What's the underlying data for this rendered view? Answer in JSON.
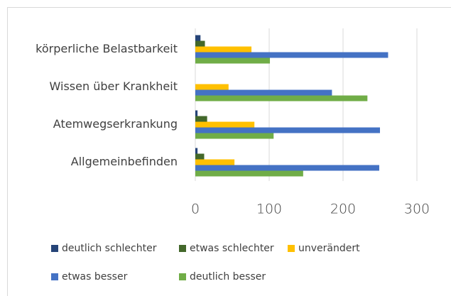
{
  "chart_data": {
    "type": "bar",
    "orientation": "horizontal",
    "categories": [
      "körperliche Belastbarkeit",
      "Wissen über Krankheit",
      "Atemwegserkrankung",
      "Allgemeinbefinden"
    ],
    "series": [
      {
        "name": "deutlich schlechter",
        "color": "#264478",
        "values": [
          7,
          0,
          3,
          3
        ]
      },
      {
        "name": "etwas schlechter",
        "color": "#43682b",
        "values": [
          13,
          0,
          16,
          12
        ]
      },
      {
        "name": "unverändert",
        "color": "#ffc000",
        "values": [
          76,
          45,
          80,
          53
        ]
      },
      {
        "name": "etwas besser",
        "color": "#4472c4",
        "values": [
          261,
          185,
          250,
          249
        ]
      },
      {
        "name": "deutlich besser",
        "color": "#70ad47",
        "values": [
          101,
          233,
          106,
          146
        ]
      }
    ],
    "xlim": [
      0,
      300
    ],
    "xticks": [
      0,
      100,
      200,
      300
    ],
    "grid": true,
    "legend": "bottom"
  }
}
